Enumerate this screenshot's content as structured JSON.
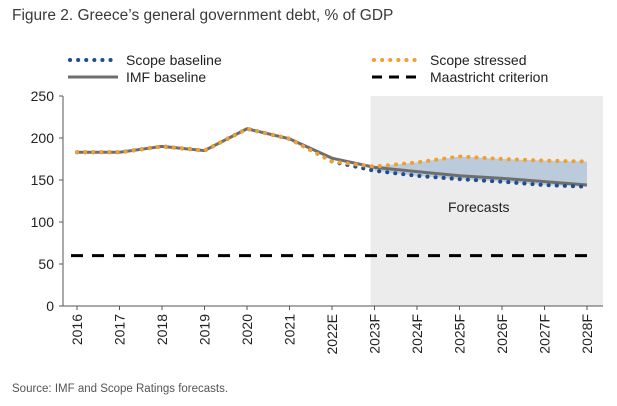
{
  "title": "Figure 2. Greece’s general government debt, % of GDP",
  "source": "Source: IMF and Scope Ratings forecasts.",
  "chart_data": {
    "type": "line",
    "title": "Figure 2. Greece’s general government debt, % of GDP",
    "xlabel": "",
    "ylabel": "",
    "ylim": [
      0,
      250
    ],
    "yticks": [
      0,
      50,
      100,
      150,
      200,
      250
    ],
    "categories": [
      "2016",
      "2017",
      "2018",
      "2019",
      "2020",
      "2021",
      "2022E",
      "2023F",
      "2024F",
      "2025F",
      "2026F",
      "2027F",
      "2028F"
    ],
    "forecast_start": "2023F",
    "annotation": "Forecasts",
    "legend_position": "top",
    "grid": false,
    "series": [
      {
        "name": "Scope baseline",
        "style": "dotted",
        "color": "#1f4e8c",
        "values": [
          183,
          183,
          190,
          185,
          211,
          199,
          172,
          161,
          155,
          151,
          148,
          144,
          142
        ]
      },
      {
        "name": "Scope stressed",
        "style": "dotted",
        "color": "#f0a030",
        "values": [
          183,
          183,
          190,
          185,
          211,
          199,
          172,
          166,
          171,
          178,
          175,
          173,
          172
        ]
      },
      {
        "name": "IMF baseline",
        "style": "solid",
        "color": "#6e6e6e",
        "values": [
          183,
          183,
          190,
          185,
          211,
          199,
          176,
          165,
          160,
          155,
          152,
          148,
          144
        ]
      },
      {
        "name": "Maastricht criterion",
        "style": "dashed",
        "color": "#000000",
        "values": [
          60,
          60,
          60,
          60,
          60,
          60,
          60,
          60,
          60,
          60,
          60,
          60,
          60
        ]
      }
    ]
  }
}
